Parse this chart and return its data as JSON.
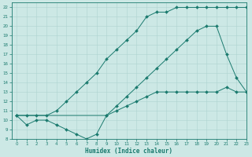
{
  "line1_x": [
    0,
    1,
    2,
    3,
    4,
    5,
    6,
    7,
    8,
    9,
    10,
    11,
    12,
    13,
    14,
    15,
    16,
    17,
    18,
    19,
    20,
    21,
    22,
    23
  ],
  "line1_y": [
    10.5,
    9.5,
    10,
    10,
    9.5,
    9.0,
    8.5,
    8.0,
    8.5,
    10.5,
    11.0,
    11.5,
    12.0,
    12.5,
    13.0,
    13.0,
    13.0,
    13.0,
    13.0,
    13.0,
    13.0,
    13.5,
    13.0,
    13.0
  ],
  "line2_x": [
    0,
    1,
    2,
    3,
    4,
    5,
    6,
    7,
    8,
    9,
    10,
    11,
    12,
    13,
    14,
    15,
    16,
    17,
    18,
    19,
    20,
    21,
    22,
    23
  ],
  "line2_y": [
    10.5,
    10.5,
    10.5,
    10.5,
    11.0,
    12.0,
    13.0,
    14.0,
    15.0,
    16.5,
    17.5,
    18.5,
    19.5,
    21.0,
    21.5,
    21.5,
    22.0,
    22.0,
    22.0,
    22.0,
    22.0,
    22.0,
    22.0,
    22.0
  ],
  "line3_x": [
    0,
    9,
    10,
    11,
    12,
    13,
    14,
    15,
    16,
    17,
    18,
    19,
    20,
    21,
    22,
    23
  ],
  "line3_y": [
    10.5,
    10.5,
    11.5,
    12.5,
    13.5,
    14.5,
    15.5,
    16.5,
    17.5,
    18.5,
    19.5,
    20.0,
    20.0,
    17.0,
    14.5,
    13.0
  ],
  "color": "#1a7a6e",
  "bg_color": "#cce8e5",
  "grid_color": "#aed4d0",
  "xlabel": "Humidex (Indice chaleur)",
  "xlim": [
    -0.5,
    23
  ],
  "ylim": [
    8,
    22.5
  ],
  "yticks": [
    8,
    9,
    10,
    11,
    12,
    13,
    14,
    15,
    16,
    17,
    18,
    19,
    20,
    21,
    22
  ],
  "xticks": [
    0,
    1,
    2,
    3,
    4,
    5,
    6,
    7,
    8,
    9,
    10,
    11,
    12,
    13,
    14,
    15,
    16,
    17,
    18,
    19,
    20,
    21,
    22,
    23
  ]
}
